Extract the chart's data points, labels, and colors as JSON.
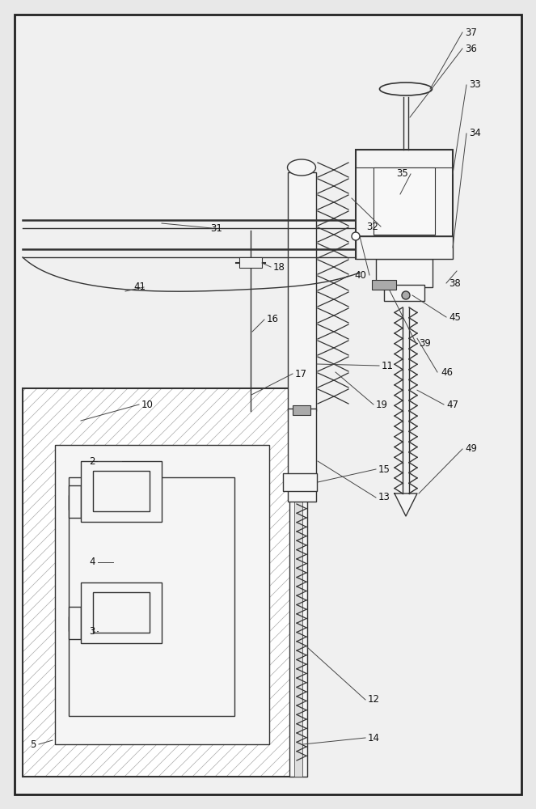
{
  "bg_color": "#e8e8e8",
  "inner_bg": "#f5f5f5",
  "line_color": "#333333",
  "hatch_color": "#555555",
  "border_color": "#222222",
  "label_color": "#111111",
  "figsize": [
    6.63,
    10.0
  ],
  "dpi": 100
}
